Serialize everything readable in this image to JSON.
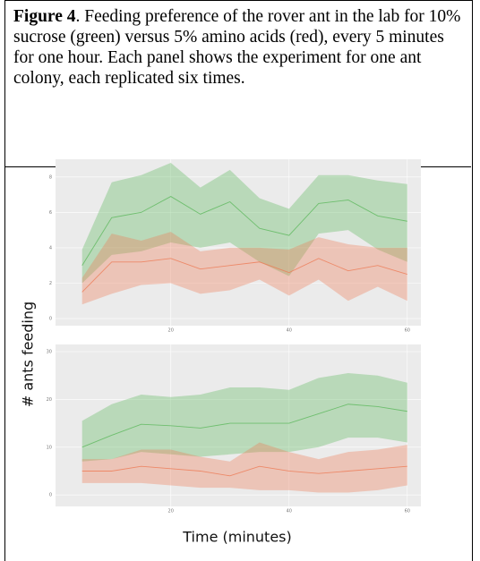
{
  "caption": {
    "label": "Figure 4",
    "text": ". Feeding preference of the rover ant in the lab for 10% sucrose (green) versus 5% amino acids (red), every 5 minutes for one hour. Each panel shows the experiment for one ant colony, each replicated six times."
  },
  "shared_axes": {
    "xlabel": "Time (minutes)",
    "ylabel": "# ants feeding"
  },
  "chart_data": [
    {
      "type": "band-line",
      "x": [
        5,
        10,
        15,
        20,
        25,
        30,
        35,
        40,
        45,
        50,
        55,
        60
      ],
      "xlim": [
        0.5,
        62.3
      ],
      "xticks": [
        20,
        40,
        60
      ],
      "ylim": [
        -0.4,
        9.0
      ],
      "yticks": [
        0,
        2,
        4,
        6,
        8
      ],
      "grid": true,
      "series": [
        {
          "color": "#5cb85c",
          "values": [
            3.0,
            5.7,
            6.0,
            6.9,
            5.9,
            6.6,
            5.1,
            4.7,
            6.5,
            6.7,
            5.8,
            5.5
          ],
          "lower": [
            2.0,
            3.6,
            3.8,
            4.3,
            4.0,
            4.3,
            3.2,
            2.4,
            4.8,
            5.0,
            3.9,
            3.2
          ],
          "upper": [
            3.9,
            7.7,
            8.1,
            8.8,
            7.4,
            8.4,
            6.8,
            6.2,
            8.1,
            8.1,
            7.8,
            7.6
          ]
        },
        {
          "color": "#ee7a55",
          "values": [
            1.5,
            3.2,
            3.2,
            3.4,
            2.8,
            3.0,
            3.2,
            2.6,
            3.4,
            2.7,
            3.0,
            2.5
          ],
          "lower": [
            0.8,
            1.4,
            1.9,
            2.0,
            1.4,
            1.6,
            2.2,
            1.3,
            2.2,
            1.0,
            1.8,
            1.0
          ],
          "upper": [
            2.3,
            4.8,
            4.4,
            4.9,
            3.8,
            4.0,
            4.0,
            3.9,
            4.6,
            4.2,
            4.0,
            4.0
          ]
        }
      ]
    },
    {
      "type": "band-line",
      "x": [
        5,
        10,
        15,
        20,
        25,
        30,
        35,
        40,
        45,
        50,
        55,
        60
      ],
      "xlim": [
        0.5,
        62.3
      ],
      "xticks": [
        20,
        40,
        60
      ],
      "ylim": [
        -2.4,
        31.5
      ],
      "yticks": [
        0,
        10,
        20,
        30
      ],
      "grid": true,
      "series": [
        {
          "color": "#5cb85c",
          "values": [
            10,
            12.5,
            14.8,
            14.5,
            14,
            15,
            15,
            15,
            17,
            19,
            18.5,
            17.5
          ],
          "lower": [
            7,
            7.5,
            9,
            8.5,
            8,
            8.5,
            9,
            9,
            10,
            12,
            12,
            11
          ],
          "upper": [
            15.5,
            19,
            21,
            20.5,
            21,
            22.5,
            22.5,
            22,
            24.5,
            25.5,
            25,
            23.5
          ]
        },
        {
          "color": "#ee7a55",
          "values": [
            5,
            5,
            6,
            5.5,
            5,
            4,
            6,
            5,
            4.5,
            5,
            5.5,
            6
          ],
          "lower": [
            2.5,
            2.5,
            2.5,
            2,
            1.5,
            1.5,
            1,
            1,
            0.5,
            0.5,
            1,
            2
          ],
          "upper": [
            7.5,
            7.5,
            9.5,
            9.5,
            8,
            7,
            11,
            9,
            7.5,
            9,
            9.5,
            10.5
          ]
        }
      ]
    }
  ]
}
